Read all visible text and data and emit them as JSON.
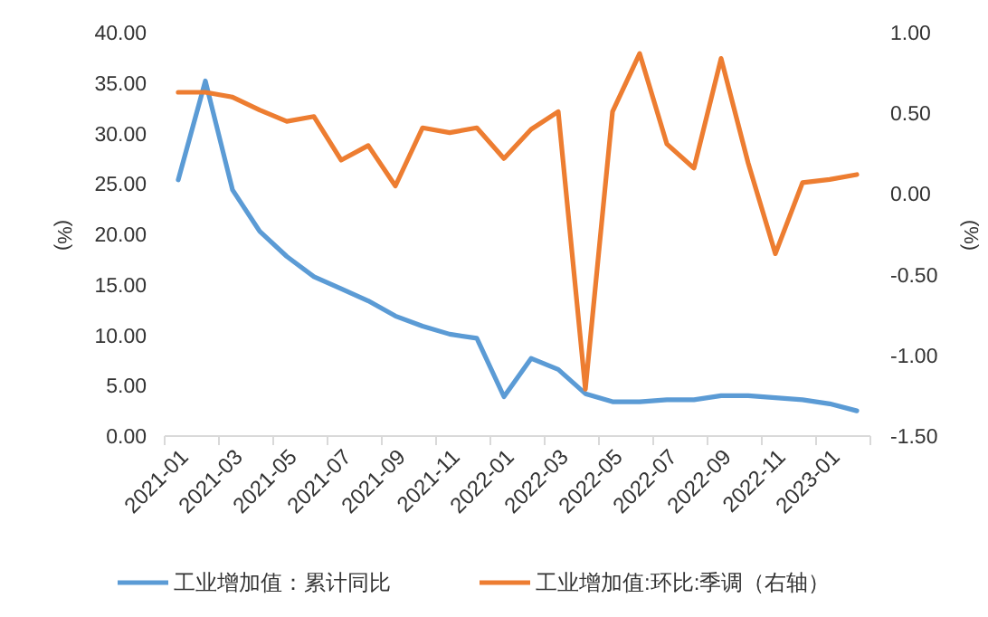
{
  "chart_data": {
    "type": "line",
    "ylabel": "(%)",
    "y2label": "(%)",
    "categories": [
      "2021-01",
      null,
      "2021-03",
      null,
      "2021-05",
      null,
      "2021-07",
      null,
      "2021-09",
      null,
      "2021-11",
      null,
      "2022-01",
      null,
      "2022-03",
      null,
      "2022-05",
      null,
      "2022-07",
      null,
      "2022-09",
      null,
      "2022-11",
      null,
      "2023-01",
      null
    ],
    "series": [
      {
        "name": "工业增加值：累计同比",
        "color": "#5b9bd5",
        "values": [
          25.4,
          35.2,
          24.4,
          20.3,
          17.8,
          15.8,
          14.6,
          13.4,
          11.9,
          10.9,
          10.1,
          9.7,
          3.9,
          7.7,
          6.6,
          4.2,
          3.4,
          3.4,
          3.6,
          3.6,
          4.0,
          4.0,
          3.8,
          3.6,
          3.2,
          2.5
        ]
      },
      {
        "name": "工业增加值:环比:季调（右轴）",
        "color": "#ed7d31",
        "axis": "y2",
        "values": [
          0.63,
          0.63,
          0.6,
          0.52,
          0.45,
          0.48,
          0.21,
          0.3,
          0.05,
          0.41,
          0.38,
          0.41,
          0.22,
          0.4,
          0.51,
          -1.21,
          0.51,
          0.87,
          0.31,
          0.16,
          0.84,
          0.19,
          -0.37,
          0.07,
          0.09,
          0.12
        ]
      }
    ],
    "ylim": [
      0,
      40
    ],
    "yticks": [
      {
        "value": 0,
        "label": "0.00"
      },
      {
        "value": 5,
        "label": "5.00"
      },
      {
        "value": 10,
        "label": "10.00"
      },
      {
        "value": 15,
        "label": "15.00"
      },
      {
        "value": 20,
        "label": "20.00"
      },
      {
        "value": 25,
        "label": "25.00"
      },
      {
        "value": 30,
        "label": "30.00"
      },
      {
        "value": 35,
        "label": "35.00"
      },
      {
        "value": 40,
        "label": "40.00"
      }
    ],
    "y2lim": [
      -1.5,
      1
    ],
    "y2ticks": [
      {
        "value": -1.5,
        "label": "-1.50"
      },
      {
        "value": -1,
        "label": "-1.00"
      },
      {
        "value": -0.5,
        "label": "-0.50"
      },
      {
        "value": 0,
        "label": "0.00"
      },
      {
        "value": 0.5,
        "label": "0.50"
      },
      {
        "value": 1,
        "label": "1.00"
      }
    ],
    "grid": false,
    "legend": "bottom",
    "marker": "none",
    "line_style": "solid"
  }
}
